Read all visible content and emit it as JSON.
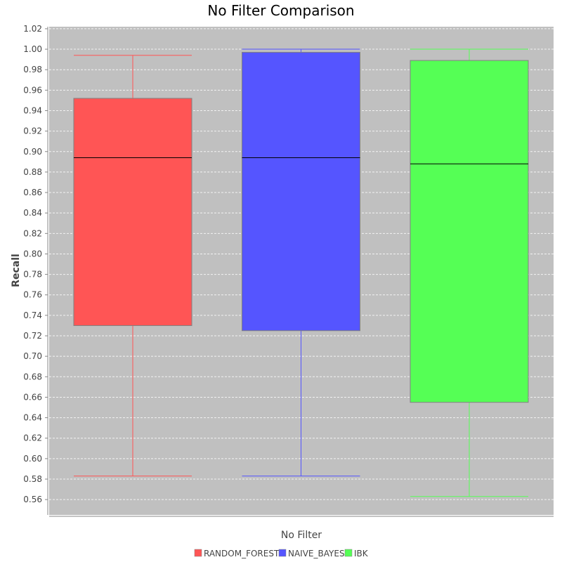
{
  "chart_data": {
    "type": "boxplot",
    "title": "No Filter Comparison",
    "xlabel": "No Filter",
    "ylabel": "Recall",
    "category": "No Filter",
    "ylim": [
      0.545,
      1.022
    ],
    "yticks": [
      0.56,
      0.58,
      0.6,
      0.62,
      0.64,
      0.66,
      0.68,
      0.7,
      0.72,
      0.74,
      0.76,
      0.78,
      0.8,
      0.82,
      0.84,
      0.86,
      0.88,
      0.9,
      0.92,
      0.94,
      0.96,
      0.98,
      1.0,
      1.02
    ],
    "grid": true,
    "legend_position": "bottom",
    "background_color": "#c0c0c0",
    "series": [
      {
        "name": "RANDOM_FOREST",
        "color": "#ff5555",
        "min": 0.583,
        "q1": 0.73,
        "median": 0.894,
        "q3": 0.952,
        "max": 0.994
      },
      {
        "name": "NAIVE_BAYES",
        "color": "#5555ff",
        "min": 0.583,
        "q1": 0.725,
        "median": 0.894,
        "q3": 0.997,
        "max": 1.0
      },
      {
        "name": "IBK",
        "color": "#55ff55",
        "min": 0.563,
        "q1": 0.655,
        "median": 0.888,
        "q3": 0.989,
        "max": 1.0
      }
    ]
  }
}
